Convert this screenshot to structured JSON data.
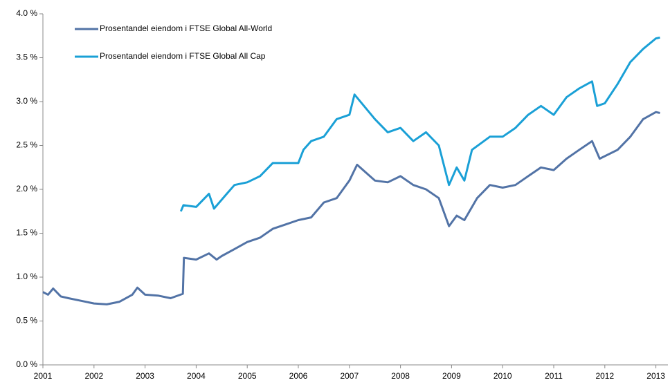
{
  "chart_data": {
    "type": "line",
    "xlim": [
      2001,
      2013.1
    ],
    "xticks": [
      2001,
      2002,
      2003,
      2004,
      2005,
      2006,
      2007,
      2008,
      2009,
      2010,
      2011,
      2012,
      2013
    ],
    "ylim": [
      0,
      4
    ],
    "yticks": [
      {
        "value": 0,
        "label": "0.0 %"
      },
      {
        "value": 0.5,
        "label": "0.5 %"
      },
      {
        "value": 1,
        "label": "1.0 %"
      },
      {
        "value": 1.5,
        "label": "1.5 %"
      },
      {
        "value": 2,
        "label": "2.0 %"
      },
      {
        "value": 2.5,
        "label": "2.5 %"
      },
      {
        "value": 3,
        "label": "3.0 %"
      },
      {
        "value": 3.5,
        "label": "3.5 %"
      },
      {
        "value": 4,
        "label": "4.0 %"
      }
    ],
    "grid": false,
    "legend": "upper left",
    "series": [
      {
        "name": "Prosentandel eiendom i FTSE Global All-World",
        "color": "#5273a6",
        "x": [
          2001.0,
          2001.1,
          2001.2,
          2001.35,
          2001.5,
          2001.75,
          2002.0,
          2002.25,
          2002.5,
          2002.75,
          2002.85,
          2003.0,
          2003.25,
          2003.5,
          2003.74,
          2003.76,
          2004.0,
          2004.25,
          2004.4,
          2004.5,
          2004.75,
          2005.0,
          2005.25,
          2005.5,
          2005.75,
          2006.0,
          2006.25,
          2006.5,
          2006.75,
          2007.0,
          2007.15,
          2007.5,
          2007.75,
          2008.0,
          2008.25,
          2008.5,
          2008.75,
          2008.95,
          2009.1,
          2009.25,
          2009.5,
          2009.75,
          2010.0,
          2010.25,
          2010.5,
          2010.75,
          2011.0,
          2011.25,
          2011.5,
          2011.75,
          2011.9,
          2012.25,
          2012.5,
          2012.75,
          2013.0,
          2013.08
        ],
        "values": [
          0.83,
          0.8,
          0.87,
          0.78,
          0.76,
          0.73,
          0.7,
          0.69,
          0.72,
          0.8,
          0.88,
          0.8,
          0.79,
          0.76,
          0.81,
          1.22,
          1.2,
          1.27,
          1.2,
          1.24,
          1.32,
          1.4,
          1.45,
          1.55,
          1.6,
          1.65,
          1.68,
          1.85,
          1.9,
          2.1,
          2.28,
          2.1,
          2.08,
          2.15,
          2.05,
          2.0,
          1.9,
          1.58,
          1.7,
          1.65,
          1.9,
          2.05,
          2.02,
          2.05,
          2.15,
          2.25,
          2.22,
          2.35,
          2.45,
          2.55,
          2.35,
          2.45,
          2.6,
          2.8,
          2.88,
          2.87
        ]
      },
      {
        "name": "Prosentandel eiendom i FTSE Global All Cap",
        "color": "#1aa0d6",
        "x": [
          2003.7,
          2003.75,
          2004.0,
          2004.25,
          2004.35,
          2004.6,
          2004.75,
          2005.0,
          2005.25,
          2005.5,
          2005.75,
          2006.0,
          2006.1,
          2006.25,
          2006.5,
          2006.75,
          2007.0,
          2007.1,
          2007.5,
          2007.75,
          2008.0,
          2008.25,
          2008.5,
          2008.75,
          2008.95,
          2009.1,
          2009.25,
          2009.4,
          2009.75,
          2010.0,
          2010.25,
          2010.5,
          2010.75,
          2011.0,
          2011.25,
          2011.5,
          2011.75,
          2011.85,
          2012.0,
          2012.25,
          2012.5,
          2012.75,
          2013.0,
          2013.08
        ],
        "values": [
          1.75,
          1.82,
          1.8,
          1.95,
          1.78,
          1.95,
          2.05,
          2.08,
          2.15,
          2.3,
          2.3,
          2.3,
          2.45,
          2.55,
          2.6,
          2.8,
          2.85,
          3.08,
          2.8,
          2.65,
          2.7,
          2.55,
          2.65,
          2.5,
          2.05,
          2.25,
          2.1,
          2.45,
          2.6,
          2.6,
          2.7,
          2.85,
          2.95,
          2.85,
          3.05,
          3.15,
          3.23,
          2.95,
          2.98,
          3.2,
          3.45,
          3.6,
          3.72,
          3.73
        ]
      }
    ]
  }
}
